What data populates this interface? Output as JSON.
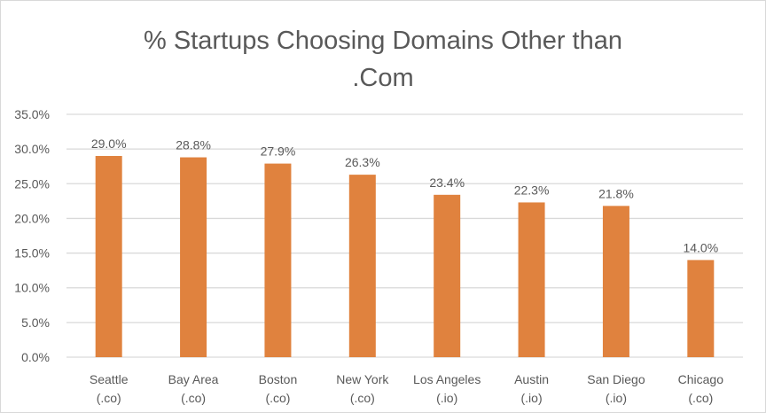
{
  "chart_data": {
    "type": "bar",
    "title_line1": "% Startups Choosing Domains Other than",
    "title_line2": ".Com",
    "categories": [
      [
        "Seattle",
        "(.co)"
      ],
      [
        "Bay Area",
        "(.co)"
      ],
      [
        "Boston",
        "(.co)"
      ],
      [
        "New York",
        "(.co)"
      ],
      [
        "Los Angeles",
        "(.io)"
      ],
      [
        "Austin",
        "(.io)"
      ],
      [
        "San Diego",
        "(.io)"
      ],
      [
        "Chicago",
        "(.co)"
      ]
    ],
    "values": [
      29.0,
      28.8,
      27.9,
      26.3,
      23.4,
      22.3,
      21.8,
      14.0
    ],
    "value_labels": [
      "29.0%",
      "28.8%",
      "27.9%",
      "26.3%",
      "23.4%",
      "22.3%",
      "21.8%",
      "14.0%"
    ],
    "yticks": [
      0,
      5,
      10,
      15,
      20,
      25,
      30,
      35
    ],
    "ytick_labels": [
      "0.0%",
      "5.0%",
      "10.0%",
      "15.0%",
      "20.0%",
      "25.0%",
      "30.0%",
      "35.0%"
    ],
    "ylim": [
      0,
      35
    ],
    "xlabel": "",
    "ylabel": "",
    "grid": true,
    "legend": "none",
    "bar_color": "#E0823E",
    "grid_color": "#D9D9D9"
  }
}
